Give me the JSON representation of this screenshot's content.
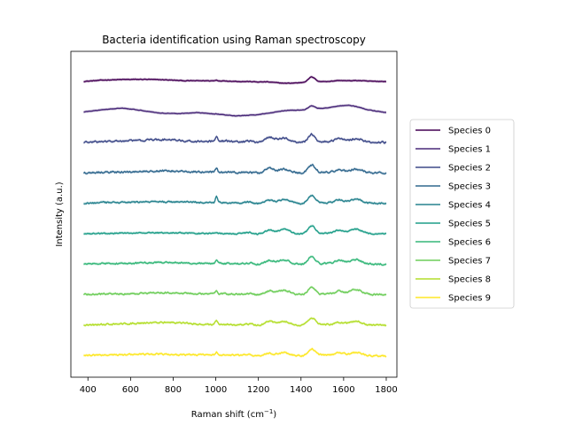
{
  "chart_data": {
    "type": "line",
    "title": "Bacteria identification using Raman spectroscopy",
    "xlabel": "Raman shift (cm",
    "xlabel_superscript": "−1",
    "xlabel_suffix": ")",
    "ylabel": "Intensity (a.u.)",
    "xlim": [
      320,
      1850
    ],
    "x_ticks": [
      400,
      600,
      800,
      1000,
      1200,
      1400,
      1600,
      1800
    ],
    "x_tick_labels": [
      "400",
      "600",
      "800",
      "1000",
      "1200",
      "1400",
      "1600",
      "1800"
    ],
    "y_ticks_shown": false,
    "legend_position": "outside-right",
    "grid": false,
    "x_range": [
      380,
      1800
    ],
    "peaks": [
      {
        "center": 1003,
        "width": 5
      },
      {
        "center": 1155,
        "width": 18
      },
      {
        "center": 1250,
        "width": 22
      },
      {
        "center": 1320,
        "width": 28
      },
      {
        "center": 1450,
        "width": 16
      },
      {
        "center": 1580,
        "width": 20
      },
      {
        "center": 1660,
        "width": 26
      }
    ],
    "series": [
      {
        "name": "Species 0",
        "color": "#440154",
        "offset": 9,
        "amplitudes": [
          0.05,
          0.02,
          0.03,
          0.03,
          0.35,
          0.05,
          0.04
        ],
        "baseline": [
          0.0,
          0.1,
          0.14,
          0.15,
          0.12,
          0.05,
          0.05,
          0.04,
          -0.02,
          -0.05,
          -0.16,
          -0.06,
          0.0,
          0.03,
          0.02,
          0.0
        ],
        "noise": 0.02
      },
      {
        "name": "Species 1",
        "color": "#482878",
        "offset": 8,
        "amplitudes": [
          0.02,
          0.0,
          0.0,
          0.05,
          0.25,
          0.05,
          0.05
        ],
        "baseline": [
          0.0,
          0.15,
          0.28,
          0.12,
          -0.08,
          -0.12,
          -0.05,
          -0.15,
          -0.28,
          -0.22,
          -0.05,
          0.1,
          0.16,
          0.3,
          0.45,
          0.15,
          -0.05
        ],
        "noise": 0.015
      },
      {
        "name": "Species 2",
        "color": "#3E4A89",
        "offset": 7,
        "amplitudes": [
          0.3,
          0.1,
          0.35,
          0.35,
          0.55,
          0.25,
          0.25
        ],
        "baseline": [
          0.0,
          0.05,
          0.1,
          0.15,
          0.2,
          0.1,
          0.05,
          0.1,
          0.0,
          0.0,
          -0.05,
          0.0,
          0.05,
          0.05,
          0.0,
          0.0
        ],
        "noise": 0.06
      },
      {
        "name": "Species 3",
        "color": "#31688E",
        "offset": 6,
        "amplitudes": [
          0.3,
          0.05,
          0.35,
          0.3,
          0.55,
          0.15,
          0.25
        ],
        "baseline": [
          0.0,
          0.05,
          0.05,
          0.1,
          0.15,
          0.1,
          0.05,
          0.05,
          0.0,
          -0.05,
          -0.05,
          0.0,
          0.05,
          0.05,
          0.0,
          0.0
        ],
        "noise": 0.06
      },
      {
        "name": "Species 4",
        "color": "#26828E",
        "offset": 5,
        "amplitudes": [
          0.4,
          0.1,
          0.25,
          0.3,
          0.55,
          0.2,
          0.25
        ],
        "baseline": [
          0.0,
          0.05,
          0.05,
          0.1,
          0.1,
          0.1,
          0.05,
          0.05,
          0.0,
          -0.05,
          -0.05,
          0.0,
          0.05,
          0.05,
          0.0,
          0.0
        ],
        "noise": 0.05
      },
      {
        "name": "Species 5",
        "color": "#1F9E89",
        "offset": 4,
        "amplitudes": [
          0.05,
          0.1,
          0.3,
          0.35,
          0.55,
          0.2,
          0.3
        ],
        "baseline": [
          0.0,
          0.02,
          0.05,
          0.05,
          0.08,
          0.05,
          0.02,
          0.02,
          0.0,
          -0.05,
          -0.05,
          0.0,
          0.05,
          0.05,
          0.0,
          0.0
        ],
        "noise": 0.04
      },
      {
        "name": "Species 6",
        "color": "#35B779",
        "offset": 3,
        "amplitudes": [
          0.3,
          0.1,
          0.3,
          0.35,
          0.55,
          0.25,
          0.3
        ],
        "baseline": [
          0.0,
          0.05,
          0.05,
          0.1,
          0.15,
          0.1,
          0.05,
          0.05,
          0.0,
          -0.05,
          -0.05,
          0.0,
          0.05,
          0.05,
          0.0,
          0.0
        ],
        "noise": 0.05
      },
      {
        "name": "Species 7",
        "color": "#6DCD59",
        "offset": 2,
        "amplitudes": [
          0.2,
          0.1,
          0.3,
          0.35,
          0.55,
          0.2,
          0.35
        ],
        "baseline": [
          0.0,
          0.05,
          0.05,
          0.1,
          0.15,
          0.1,
          0.05,
          0.05,
          0.0,
          -0.05,
          -0.05,
          0.0,
          0.05,
          0.05,
          0.0,
          0.0
        ],
        "noise": 0.05
      },
      {
        "name": "Species 8",
        "color": "#B4DE2C",
        "offset": 1,
        "amplitudes": [
          0.3,
          0.1,
          0.3,
          0.3,
          0.5,
          0.15,
          0.25
        ],
        "baseline": [
          0.0,
          0.05,
          0.1,
          0.15,
          0.2,
          0.15,
          0.05,
          0.05,
          0.0,
          -0.05,
          -0.05,
          0.0,
          0.05,
          0.05,
          0.0,
          0.0
        ],
        "noise": 0.05
      },
      {
        "name": "Species 9",
        "color": "#FDE725",
        "offset": 0,
        "amplitudes": [
          0.2,
          0.05,
          0.2,
          0.25,
          0.45,
          0.15,
          0.2
        ],
        "baseline": [
          0.0,
          0.05,
          0.05,
          0.1,
          0.1,
          0.05,
          0.05,
          0.05,
          0.0,
          -0.05,
          -0.05,
          0.0,
          0.05,
          0.05,
          0.0,
          -0.05
        ],
        "noise": 0.05
      }
    ]
  }
}
